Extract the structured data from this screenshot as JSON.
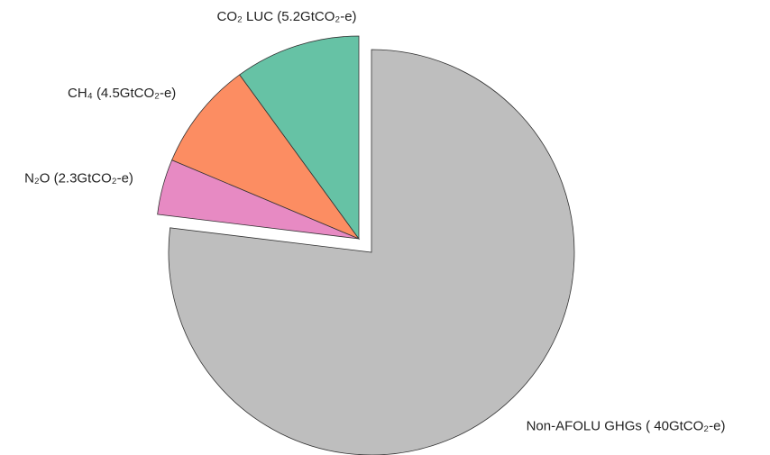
{
  "chart_data": {
    "type": "pie",
    "categories": [
      "Non-AFOLU GHGs ( 40GtCO₂-e)",
      "N₂O (2.3GtCO₂-e)",
      "CH₄ (4.5GtCO₂-e)",
      "CO₂ LUC (5.2GtCO₂-e)"
    ],
    "values": [
      40,
      2.3,
      4.5,
      5.2
    ],
    "colors": [
      "#bebebe",
      "#e78ac3",
      "#fc8d62",
      "#66c2a5"
    ],
    "explode": [
      false,
      true,
      true,
      true
    ]
  }
}
